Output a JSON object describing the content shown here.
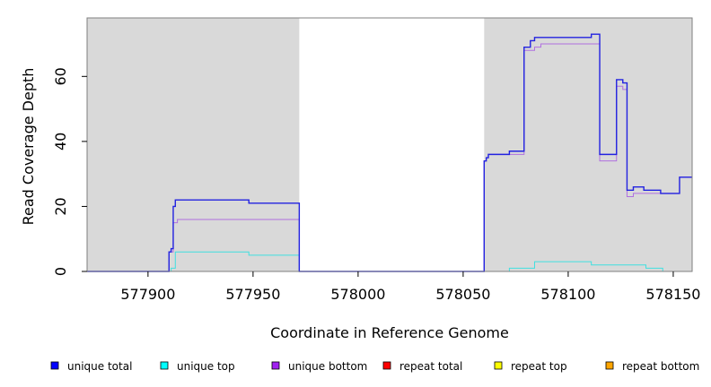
{
  "chart_data": {
    "type": "line",
    "step": true,
    "xlabel": "Coordinate in Reference Genome",
    "ylabel": "Read Coverage Depth",
    "xlim": [
      577871,
      578159
    ],
    "ylim": [
      0,
      78
    ],
    "x_ticks": [
      577900,
      577950,
      578000,
      578050,
      578100,
      578150
    ],
    "x_tick_labels": [
      "577900",
      "577950",
      "578000",
      "578050",
      "578100",
      "578150"
    ],
    "y_ticks": [
      0,
      20,
      40,
      60
    ],
    "y_tick_labels": [
      "0",
      "20",
      "40",
      "60"
    ],
    "grid": false,
    "background": {
      "shaded_color": "#d9d9d9",
      "unshaded_color": "#ffffff",
      "shaded_regions": [
        [
          577871,
          577972
        ],
        [
          578060,
          578159
        ]
      ]
    },
    "legend_position": "bottom",
    "legend": [
      {
        "name": "unique total",
        "color": "#0000ff"
      },
      {
        "name": "unique top",
        "color": "#00ffff"
      },
      {
        "name": "unique bottom",
        "color": "#a020f0"
      },
      {
        "name": "repeat total",
        "color": "#ff0000"
      },
      {
        "name": "repeat top",
        "color": "#ffff00"
      },
      {
        "name": "repeat bottom",
        "color": "#ffa500"
      }
    ],
    "series": [
      {
        "name": "unique total",
        "color": "#0000ff",
        "line_color": "#2222e0",
        "x": [
          577871,
          577910,
          577911,
          577912,
          577913,
          577948,
          577972,
          578060,
          578061,
          578062,
          578072,
          578079,
          578082,
          578084,
          578111,
          578115,
          578123,
          578126,
          578128,
          578131,
          578136,
          578144,
          578153,
          578159
        ],
        "y": [
          0,
          6,
          7,
          20,
          22,
          21,
          0,
          34,
          35,
          36,
          37,
          69,
          71,
          72,
          73,
          36,
          59,
          58,
          25,
          26,
          25,
          24,
          29,
          29
        ]
      },
      {
        "name": "unique top",
        "color": "#00ffff",
        "line_color": "#40e0e0",
        "x": [
          577871,
          577911,
          577913,
          577948,
          577972,
          578072,
          578084,
          578111,
          578130,
          578137,
          578145,
          578159
        ],
        "y": [
          0,
          1,
          6,
          5,
          0,
          1,
          3,
          2,
          2,
          1,
          0,
          0
        ]
      },
      {
        "name": "unique bottom",
        "color": "#a020f0",
        "line_color": "#b070e0",
        "x": [
          577871,
          577910,
          577912,
          577914,
          577972,
          578060,
          578061,
          578062,
          578072,
          578079,
          578084,
          578087,
          578111,
          578115,
          578123,
          578126,
          578128,
          578131,
          578136,
          578144,
          578153,
          578159
        ],
        "y": [
          0,
          6,
          15,
          16,
          0,
          34,
          35,
          36,
          36,
          68,
          69,
          70,
          70,
          34,
          57,
          56,
          23,
          24,
          24,
          24,
          29,
          29
        ]
      },
      {
        "name": "repeat total",
        "color": "#ff0000",
        "line_color": "#ff0000",
        "x": [
          577871,
          578159
        ],
        "y": [
          0,
          0
        ]
      },
      {
        "name": "repeat top",
        "color": "#ffff00",
        "line_color": "#ffff00",
        "x": [
          577871,
          578159
        ],
        "y": [
          0,
          0
        ]
      },
      {
        "name": "repeat bottom",
        "color": "#ffa500",
        "line_color": "#ffa500",
        "x": [
          577871,
          578159
        ],
        "y": [
          0,
          0
        ]
      }
    ]
  }
}
